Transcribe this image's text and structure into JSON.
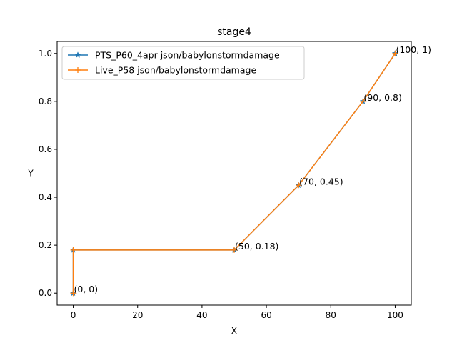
{
  "chart_data": {
    "type": "line",
    "title": "stage4",
    "xlabel": "X",
    "ylabel": "Y",
    "xlim": [
      -5,
      105
    ],
    "ylim": [
      -0.05,
      1.05
    ],
    "xticks": [
      0,
      20,
      40,
      60,
      80,
      100
    ],
    "xtick_labels": [
      "0",
      "20",
      "40",
      "60",
      "80",
      "100"
    ],
    "yticks": [
      0.0,
      0.2,
      0.4,
      0.6,
      0.8,
      1.0
    ],
    "ytick_labels": [
      "0.0",
      "0.2",
      "0.4",
      "0.6",
      "0.8",
      "1.0"
    ],
    "grid": false,
    "legend_position": "upper-left",
    "series": [
      {
        "name": "PTS_P60_4apr json/babylonstormdamage",
        "color": "#1f77b4",
        "marker": "star",
        "x": [
          0,
          0,
          50,
          70,
          90,
          100
        ],
        "y": [
          0,
          0.18,
          0.18,
          0.45,
          0.8,
          1
        ]
      },
      {
        "name": "Live_P58 json/babylonstormdamage",
        "color": "#ff7f0e",
        "marker": "plus",
        "x": [
          0,
          0,
          50,
          70,
          90,
          100
        ],
        "y": [
          0,
          0.18,
          0.18,
          0.45,
          0.8,
          1
        ]
      }
    ],
    "annotations": [
      {
        "text": "(0, 0)",
        "x": 0,
        "y": 0
      },
      {
        "text": "(50, 0.18)",
        "x": 50,
        "y": 0.18
      },
      {
        "text": "(70, 0.45)",
        "x": 70,
        "y": 0.45
      },
      {
        "text": "(90, 0.8)",
        "x": 90,
        "y": 0.8
      },
      {
        "text": "(100, 1)",
        "x": 100,
        "y": 1
      }
    ]
  }
}
